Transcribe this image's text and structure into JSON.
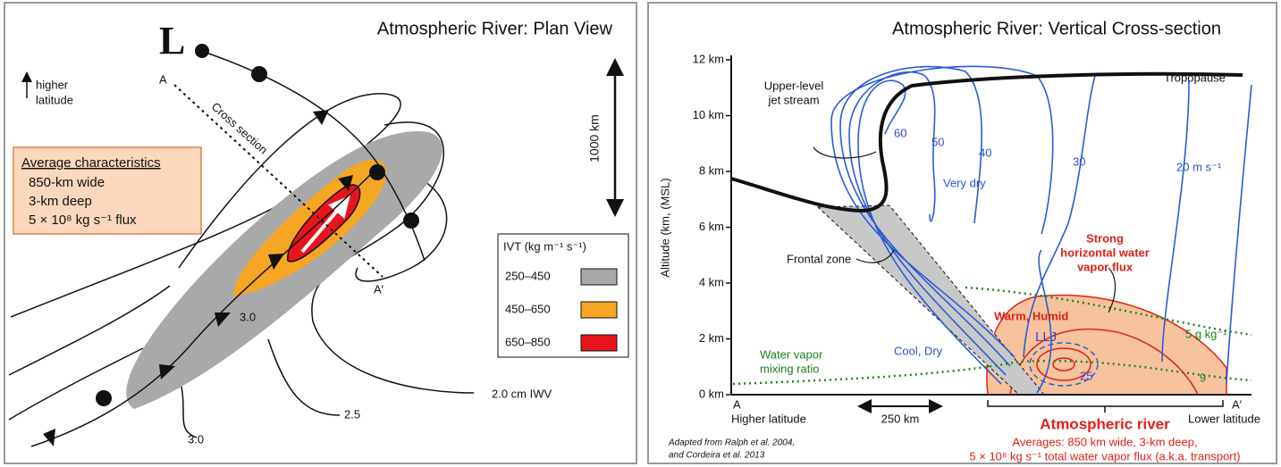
{
  "plan_view": {
    "title": "Atmospheric River: Plan View",
    "low": "L",
    "orientation": [
      "higher",
      "latitude"
    ],
    "section_start": "A",
    "section_end": "A′",
    "section_label": "Cross section",
    "scale": "1000 km",
    "characteristics": {
      "title": "Average characteristics",
      "items": [
        "850-km wide",
        "3-km deep",
        "5 × 10⁸ kg s⁻¹ flux"
      ]
    },
    "legend": {
      "title": "IVT (kg m⁻¹ s⁻¹)",
      "items": [
        {
          "label": "250–450",
          "color": "#a9a9a9"
        },
        {
          "label": "450–650",
          "color": "#f5a623"
        },
        {
          "label": "650–850",
          "color": "#e8141c"
        }
      ]
    },
    "contours": [
      "3.0",
      "2.0 cm IWV",
      "2.5",
      "3.0"
    ]
  },
  "cross_section": {
    "title": "Atmospheric River: Vertical Cross-section",
    "y_axis_label": "Altitude (km, (MSL)",
    "y_ticks": [
      "0 km",
      "2 km",
      "4 km",
      "6 km",
      "8 km",
      "10 km",
      "12 km"
    ],
    "jet": [
      "Upper-level",
      "jet stream"
    ],
    "tropopause": "Tropopause",
    "wind_labels": [
      "60",
      "50",
      "40",
      "30",
      "20 m s⁻¹"
    ],
    "very_dry": "Very dry",
    "frontal_zone": "Frontal zone",
    "flux_label": [
      "Strong",
      "horizontal water",
      "vapor flux"
    ],
    "warm_humid": "Warm, Humid",
    "llj": "LLJ",
    "llj_speed": "25",
    "mixing_labels": [
      "5 g kg⁻¹",
      "9"
    ],
    "mixing_ratio": [
      "Water vapor",
      "mixing ratio"
    ],
    "cool_dry": "Cool, Dry",
    "start": "A",
    "end": "A′",
    "start_label": "Higher latitude",
    "end_label": "Lower latitude",
    "distance": "250 km",
    "ar_title": "Atmospheric river",
    "ar_notes": [
      "Averages: 850 km wide, 3-km deep,",
      "5 × 10⁸ kg s⁻¹ total water vapor flux (a.k.a. transport)"
    ],
    "credit": [
      "Adapted from Ralph et al. 2004,",
      "and Cordeira et al. 2013"
    ]
  }
}
